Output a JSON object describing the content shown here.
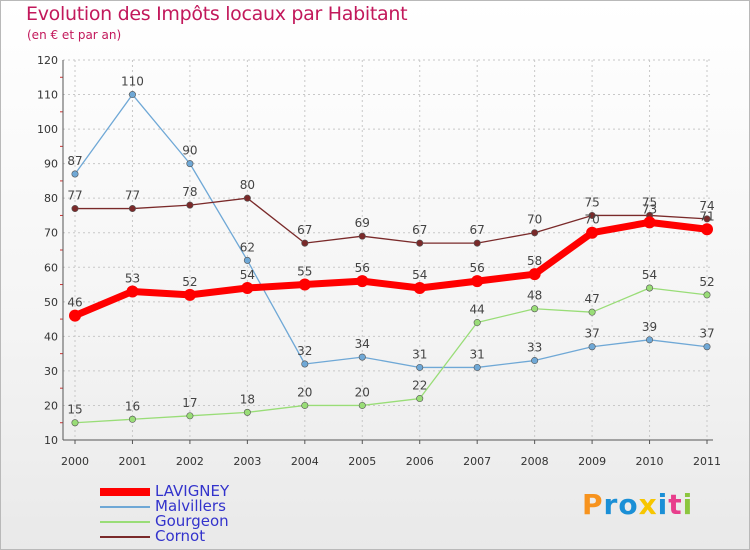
{
  "title": "Evolution des Impôts locaux par Habitant",
  "subtitle": "(en € et par an)",
  "brand": {
    "text": "Proxiti",
    "letters": [
      "P",
      "r",
      "o",
      "x",
      "i",
      "t",
      "i"
    ]
  },
  "chart_data": {
    "type": "line",
    "title": "Evolution des Impôts locaux par Habitant",
    "subtitle": "(en € et par an)",
    "xlabel": "",
    "ylabel": "",
    "ylim": [
      10,
      120
    ],
    "yticks": [
      10,
      20,
      30,
      40,
      50,
      60,
      70,
      80,
      90,
      100,
      110,
      120
    ],
    "x": [
      "2000",
      "2001",
      "2002",
      "2003",
      "2004",
      "2005",
      "2006",
      "2007",
      "2008",
      "2009",
      "2010",
      "2011"
    ],
    "grid": true,
    "legend": "bottom-left",
    "series": [
      {
        "name": "LAVIGNEY",
        "color": "#ff0000",
        "values": [
          46,
          53,
          52,
          54,
          55,
          56,
          54,
          56,
          58,
          70,
          73,
          71
        ]
      },
      {
        "name": "Malvillers",
        "color": "#6fa8d6",
        "values": [
          87,
          110,
          90,
          62,
          32,
          34,
          31,
          31,
          33,
          37,
          39,
          37
        ]
      },
      {
        "name": "Gourgeon",
        "color": "#99dd77",
        "values": [
          15,
          16,
          17,
          18,
          20,
          20,
          22,
          44,
          48,
          47,
          54,
          52
        ]
      },
      {
        "name": "Cornot",
        "color": "#7a2a2a",
        "values": [
          77,
          77,
          78,
          80,
          67,
          69,
          67,
          67,
          70,
          75,
          75,
          74
        ]
      }
    ]
  }
}
